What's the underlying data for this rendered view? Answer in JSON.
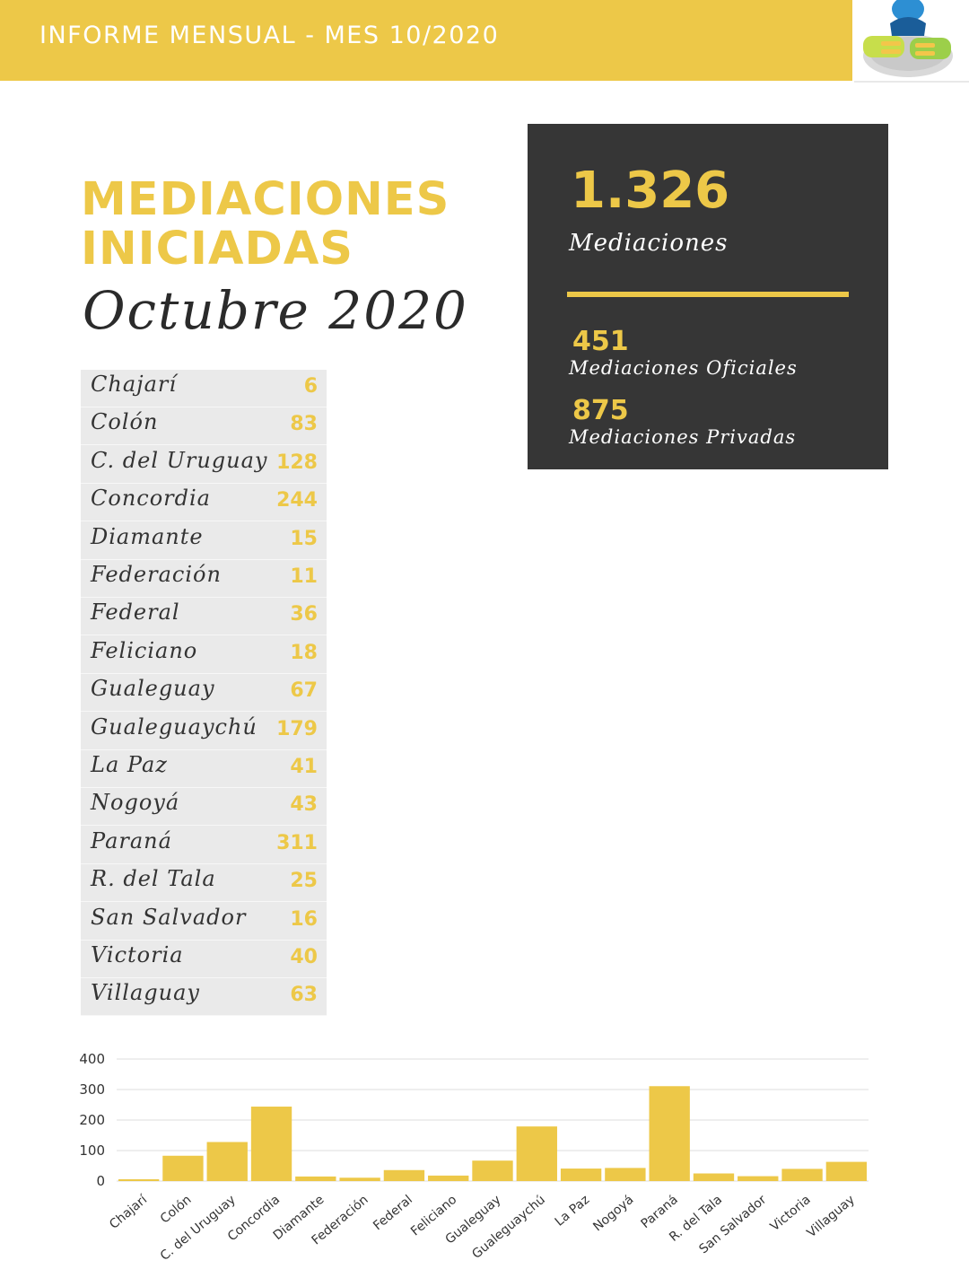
{
  "header": {
    "title": "INFORME MENSUAL - MES 10/2020",
    "logo": "mediation-hands-logo"
  },
  "heading": {
    "line1": "MEDIACIONES",
    "line2": "INICIADAS",
    "subtitle": "Octubre 2020"
  },
  "summary": {
    "total": "1.326",
    "total_label": "Mediaciones",
    "oficiales": "451",
    "oficiales_label": "Mediaciones Oficiales",
    "privadas": "875",
    "privadas_label": "Mediaciones Privadas"
  },
  "table": [
    {
      "name": "Chajarí",
      "value": "6"
    },
    {
      "name": "Colón",
      "value": "83"
    },
    {
      "name": "C. del Uruguay",
      "value": "128"
    },
    {
      "name": "Concordia",
      "value": "244"
    },
    {
      "name": "Diamante",
      "value": "15"
    },
    {
      "name": "Federación",
      "value": "11"
    },
    {
      "name": "Federal",
      "value": "36"
    },
    {
      "name": "Feliciano",
      "value": "18"
    },
    {
      "name": "Gualeguay",
      "value": "67"
    },
    {
      "name": "Gualeguaychú",
      "value": "179"
    },
    {
      "name": "La Paz",
      "value": "41"
    },
    {
      "name": "Nogoyá",
      "value": "43"
    },
    {
      "name": "Paraná",
      "value": "311"
    },
    {
      "name": "R. del Tala",
      "value": "25"
    },
    {
      "name": "San Salvador",
      "value": "16"
    },
    {
      "name": "Victoria",
      "value": "40"
    },
    {
      "name": "Villaguay",
      "value": "63"
    }
  ],
  "colors": {
    "accent": "#edc848",
    "dark": "#363636",
    "table_bg": "#eaeaea"
  },
  "chart_data": {
    "type": "bar",
    "categories": [
      "Chajarí",
      "Colón",
      "C. del Uruguay",
      "Concordia",
      "Diamante",
      "Federación",
      "Federal",
      "Feliciano",
      "Gualeguay",
      "Gualeguaychú",
      "La Paz",
      "Nogoyá",
      "Paraná",
      "R. del Tala",
      "San Salvador",
      "Victoria",
      "Villaguay"
    ],
    "values": [
      6,
      83,
      128,
      244,
      15,
      11,
      36,
      18,
      67,
      179,
      41,
      43,
      311,
      25,
      16,
      40,
      63
    ],
    "yticks": [
      0,
      100,
      200,
      300,
      400
    ],
    "ylim": [
      0,
      400
    ],
    "grid": true,
    "bar_color": "#edc848"
  }
}
